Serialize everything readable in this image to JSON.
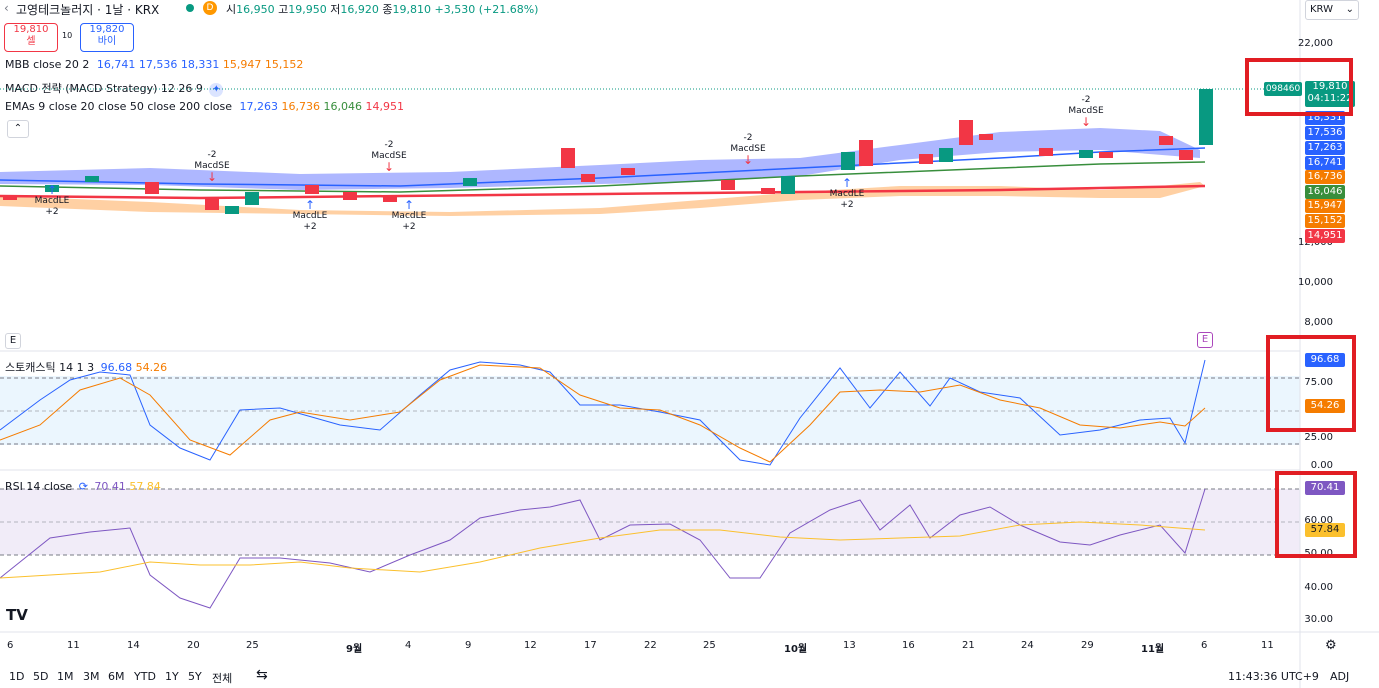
{
  "header": {
    "back_icon": "chevron-left-icon",
    "symbol": "고영테크놀러지 · 1날 · KRX",
    "d_badge": "D",
    "open_label": "시",
    "open": "16,950",
    "high_label": "고",
    "high": "19,950",
    "low_label": "저",
    "low": "16,920",
    "close_label": "종",
    "close": "19,810",
    "change": "+3,530 (+21.68%)"
  },
  "trade": {
    "sell_price": "19,810",
    "sell_label": "셀",
    "spread": "10",
    "buy_price": "19,820",
    "buy_label": "바이"
  },
  "currency": {
    "value": "KRW",
    "icon": "chevron-down-icon"
  },
  "legends": {
    "mbb_name": "MBB close 20 2",
    "mbb_v1": "16,741",
    "mbb_v2": "17,536",
    "mbb_v3": "18,331",
    "mbb_v4": "15,947",
    "mbb_v5": "15,152",
    "macd_name": "MACD 전략 (MACD Strategy) 12 26 9",
    "ema_name": "EMAs 9 close 20 close 50 close 200 close",
    "ema_v1": "17,263",
    "ema_v2": "16,736",
    "ema_v3": "16,046",
    "ema_v4": "14,951",
    "collapse_icon": "chevron-up-icon"
  },
  "price_scale": [
    "22,000",
    "12,000",
    "10,000",
    "8,000"
  ],
  "price_labels": [
    {
      "text": "19,810",
      "sub": "04:11:22",
      "color": "#089981"
    },
    {
      "text": "18,331",
      "color": "#2962ff"
    },
    {
      "text": "17,536",
      "color": "#2962ff"
    },
    {
      "text": "17,263",
      "color": "#2962ff"
    },
    {
      "text": "16,741",
      "color": "#2962ff"
    },
    {
      "text": "16,736",
      "color": "#f57c00"
    },
    {
      "text": "16,046",
      "color": "#388e3c"
    },
    {
      "text": "15,947",
      "color": "#f57c00"
    },
    {
      "text": "15,152",
      "color": "#f57c00"
    },
    {
      "text": "14,951",
      "color": "#f23645"
    }
  ],
  "countdown_symbol": "098460",
  "signals": [
    {
      "type": "MacdLE",
      "qty": "+2"
    },
    {
      "type": "MacdSE",
      "qty": "-2"
    },
    {
      "type": "MacdLE",
      "qty": "+2"
    },
    {
      "type": "MacdSE",
      "qty": "-2"
    },
    {
      "type": "MacdLE",
      "qty": "+2"
    },
    {
      "type": "MacdSE",
      "qty": "-2"
    },
    {
      "type": "MacdLE",
      "qty": "+2"
    },
    {
      "type": "MacdSE",
      "qty": "-2"
    }
  ],
  "earnings_badge": "E",
  "stoch": {
    "name": "스토캐스틱 14 1 3",
    "k": "96.68",
    "d": "54.26",
    "scale": [
      "75.00",
      "25.00",
      "0.00"
    ]
  },
  "rsi": {
    "name": "RSI 14 close",
    "value": "70.41",
    "ma": "57.84",
    "scale": [
      "60.00",
      "50.00",
      "40.00",
      "30.00"
    ]
  },
  "time_axis": [
    "6",
    "11",
    "14",
    "20",
    "25",
    "9월",
    "4",
    "9",
    "12",
    "17",
    "22",
    "25",
    "10월",
    "13",
    "16",
    "21",
    "24",
    "29",
    "11월",
    "6",
    "11"
  ],
  "bottom": {
    "ranges": [
      "1D",
      "5D",
      "1M",
      "3M",
      "6M",
      "YTD",
      "1Y",
      "5Y",
      "전체"
    ],
    "goto_icon": "calendar-goto-icon",
    "clock": "11:43:36 UTC+9",
    "adj": "ADJ",
    "settings_icon": "gear-icon"
  },
  "logo": "TV",
  "colors": {
    "up": "#089981",
    "down": "#f23645",
    "band": "#2962ff",
    "orange": "#f57c00"
  }
}
